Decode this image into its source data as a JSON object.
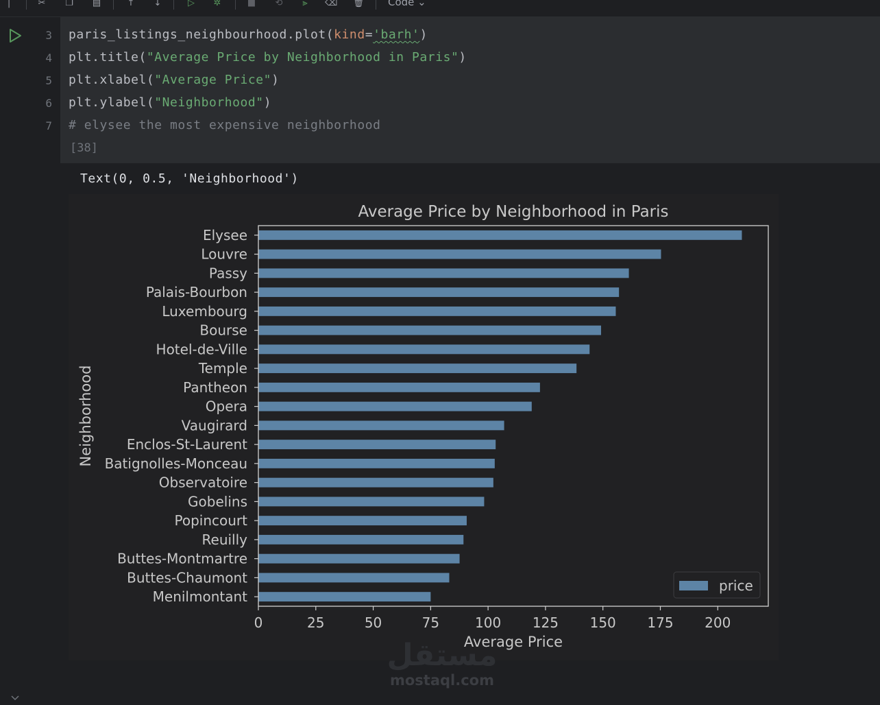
{
  "notebook": {
    "toolbar": {
      "cell_type": "Code ⌄"
    },
    "cell": {
      "line_numbers": [
        "3",
        "4",
        "5",
        "6",
        "7"
      ],
      "code": {
        "line3_a": "paris_listings_neighbourhood.plot(",
        "line3_kw": "kind",
        "line3_eq": "=",
        "line3_str": "'barh'",
        "line3_end": ")",
        "line4_a": "plt.title(",
        "line4_str": "\"Average Price by Neighborhood in Paris\"",
        "line4_end": ")",
        "line5_a": "plt.xlabel(",
        "line5_str": "\"Average Price\"",
        "line5_end": ")",
        "line6_a": "plt.ylabel(",
        "line6_str": "\"Neighborhood\"",
        "line6_end": ")",
        "line7_comment": "# elysee the most expensive neighborhood"
      },
      "execution_count": "[38]"
    },
    "output": {
      "text": "Text(0, 0.5, 'Neighborhood')"
    }
  },
  "chart_data": {
    "type": "bar",
    "orientation": "horizontal",
    "title": "Average Price by Neighborhood in Paris",
    "xlabel": "Average Price",
    "ylabel": "Neighborhood",
    "xlim": [
      0,
      222
    ],
    "xticks": [
      0,
      25,
      50,
      75,
      100,
      125,
      150,
      175,
      200
    ],
    "categories": [
      "Elysee",
      "Louvre",
      "Passy",
      "Palais-Bourbon",
      "Luxembourg",
      "Bourse",
      "Hotel-de-Ville",
      "Temple",
      "Pantheon",
      "Opera",
      "Vaugirard",
      "Enclos-St-Laurent",
      "Batignolles-Monceau",
      "Observatoire",
      "Gobelins",
      "Popincourt",
      "Reuilly",
      "Buttes-Montmartre",
      "Buttes-Chaumont",
      "Menilmontant"
    ],
    "series": [
      {
        "name": "price",
        "values": [
          210.5,
          175.3,
          161.3,
          157,
          155.6,
          149.2,
          144.2,
          138.5,
          122.6,
          119,
          107,
          103.3,
          102.9,
          102.3,
          98.3,
          90.7,
          89.3,
          87.6,
          83.1,
          75
        ]
      }
    ],
    "legend": "bottom-right",
    "grid": false,
    "colors": {
      "bar": "#5d84a6",
      "background": "#212123",
      "frame": "#d2d2d2",
      "text": "#c8c8c8"
    }
  },
  "watermark": {
    "logo": "مستقل",
    "url": "mostaql.com"
  }
}
